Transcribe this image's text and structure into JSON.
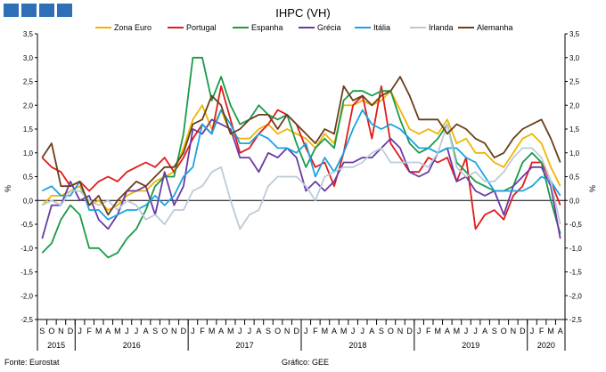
{
  "logo": {
    "color": "#2e6fb5",
    "squares": 4
  },
  "footer": {
    "source": "Fonte: Eurostat",
    "credit": "Gráfico: GEE"
  },
  "chart_data": {
    "type": "line",
    "title": "IHPC (VH)",
    "ylabel_left": "%",
    "ylabel_right": "%",
    "ylim": [
      -2.5,
      3.5
    ],
    "yticks": [
      -2.5,
      -2.0,
      -1.5,
      -1.0,
      -0.5,
      0.0,
      0.5,
      1.0,
      1.5,
      2.0,
      2.5,
      3.0,
      3.5
    ],
    "ytick_labels": [
      "-2,5",
      "-2,0",
      "-1,5",
      "-1,0",
      "-0,5",
      "0,0",
      "0,5",
      "1,0",
      "1,5",
      "2,0",
      "2,5",
      "3,0",
      "3,5"
    ],
    "gridlines": false,
    "legend_position": "top",
    "month_labels": [
      "S",
      "O",
      "N",
      "D",
      "J",
      "F",
      "M",
      "A",
      "M",
      "J",
      "J",
      "A",
      "S",
      "O",
      "N",
      "D",
      "J",
      "F",
      "M",
      "A",
      "M",
      "J",
      "J",
      "A",
      "S",
      "O",
      "N",
      "D",
      "J",
      "F",
      "M",
      "A",
      "M",
      "J",
      "J",
      "A",
      "S",
      "O",
      "N",
      "D",
      "J",
      "F",
      "M",
      "A",
      "M",
      "J",
      "J",
      "A",
      "S",
      "O",
      "N",
      "D",
      "J",
      "F",
      "M",
      "A"
    ],
    "year_groups": [
      {
        "label": "2015",
        "count": 4
      },
      {
        "label": "2016",
        "count": 12
      },
      {
        "label": "2017",
        "count": 12
      },
      {
        "label": "2018",
        "count": 12
      },
      {
        "label": "2019",
        "count": 12
      },
      {
        "label": "2020",
        "count": 4
      }
    ],
    "series": [
      {
        "name": "Zona Euro",
        "color": "#f0b400",
        "values": [
          -0.1,
          0.1,
          0.1,
          0.2,
          0.3,
          -0.1,
          0.0,
          -0.2,
          -0.1,
          0.1,
          0.2,
          0.2,
          0.4,
          0.5,
          0.6,
          1.1,
          1.7,
          2.0,
          1.5,
          1.9,
          1.4,
          1.3,
          1.3,
          1.5,
          1.6,
          1.4,
          1.5,
          1.4,
          1.3,
          1.1,
          1.4,
          1.2,
          2.0,
          2.0,
          2.1,
          2.0,
          2.1,
          2.3,
          1.9,
          1.5,
          1.4,
          1.5,
          1.4,
          1.7,
          1.2,
          1.3,
          1.0,
          1.0,
          0.8,
          0.7,
          1.0,
          1.3,
          1.4,
          1.2,
          0.7,
          0.3
        ]
      },
      {
        "name": "Portugal",
        "color": "#e01b1b",
        "values": [
          0.9,
          0.7,
          0.6,
          0.3,
          0.4,
          0.2,
          0.4,
          0.5,
          0.4,
          0.6,
          0.7,
          0.8,
          0.7,
          0.9,
          0.6,
          0.9,
          1.3,
          1.6,
          1.4,
          2.4,
          1.7,
          1.0,
          1.1,
          1.4,
          1.6,
          1.9,
          1.8,
          1.6,
          1.1,
          0.7,
          0.8,
          0.3,
          1.0,
          2.0,
          2.2,
          1.3,
          2.4,
          1.2,
          0.9,
          0.6,
          0.6,
          0.9,
          0.8,
          0.9,
          0.4,
          0.9,
          -0.6,
          -0.3,
          -0.2,
          -0.4,
          0.1,
          0.3,
          0.8,
          0.8,
          0.4,
          -0.1
        ]
      },
      {
        "name": "Espanha",
        "color": "#1a9a48",
        "values": [
          -1.1,
          -0.9,
          -0.4,
          -0.1,
          -0.3,
          -1.0,
          -1.0,
          -1.2,
          -1.1,
          -0.8,
          -0.6,
          -0.2,
          0.3,
          0.5,
          0.5,
          1.4,
          3.0,
          3.0,
          2.1,
          2.6,
          2.0,
          1.6,
          1.7,
          2.0,
          1.8,
          1.7,
          1.8,
          1.2,
          0.7,
          1.1,
          1.3,
          1.1,
          2.1,
          2.3,
          2.3,
          2.2,
          2.3,
          2.3,
          1.7,
          1.2,
          1.0,
          1.1,
          1.3,
          1.6,
          0.8,
          0.6,
          0.4,
          0.3,
          0.2,
          0.2,
          0.3,
          0.8,
          1.0,
          0.8,
          0.0,
          -0.7
        ]
      },
      {
        "name": "Grécia",
        "color": "#6a3aa6",
        "values": [
          -0.8,
          -0.1,
          -0.1,
          0.4,
          0.0,
          0.1,
          -0.4,
          -0.6,
          -0.3,
          0.2,
          0.2,
          0.3,
          -0.3,
          0.6,
          -0.1,
          0.3,
          1.5,
          1.4,
          1.7,
          1.6,
          1.5,
          0.9,
          0.9,
          0.6,
          1.0,
          0.9,
          1.1,
          0.9,
          0.2,
          0.4,
          0.2,
          0.4,
          0.8,
          0.8,
          0.9,
          0.9,
          1.1,
          1.3,
          1.1,
          0.6,
          0.5,
          0.6,
          1.0,
          1.1,
          0.4,
          0.5,
          0.2,
          0.1,
          0.2,
          -0.3,
          0.3,
          0.5,
          0.7,
          0.7,
          0.3,
          -0.8
        ]
      },
      {
        "name": "Itália",
        "color": "#1aa3e0",
        "values": [
          0.2,
          0.3,
          0.1,
          0.1,
          0.4,
          -0.2,
          -0.2,
          -0.4,
          -0.3,
          -0.2,
          -0.2,
          -0.1,
          0.1,
          -0.1,
          0.1,
          0.5,
          0.7,
          1.6,
          1.4,
          1.9,
          1.6,
          1.2,
          1.2,
          1.4,
          1.3,
          1.1,
          1.1,
          1.0,
          1.2,
          0.5,
          0.9,
          0.6,
          1.0,
          1.5,
          1.9,
          1.6,
          1.5,
          1.6,
          1.5,
          1.3,
          1.1,
          1.1,
          1.0,
          1.1,
          1.1,
          0.9,
          0.8,
          0.5,
          0.2,
          0.2,
          0.2,
          0.2,
          0.3,
          0.5,
          0.4,
          0.1
        ]
      },
      {
        "name": "Irlanda",
        "color": "#bccad8",
        "values": [
          -0.1,
          0.0,
          -0.1,
          0.2,
          0.2,
          0.0,
          -0.1,
          0.0,
          -0.2,
          0.0,
          -0.1,
          -0.4,
          -0.3,
          -0.5,
          -0.2,
          -0.2,
          0.2,
          0.3,
          0.6,
          0.7,
          0.0,
          -0.6,
          -0.3,
          -0.2,
          0.3,
          0.5,
          0.5,
          0.5,
          0.3,
          0.0,
          0.5,
          0.6,
          0.7,
          0.7,
          0.8,
          1.0,
          1.1,
          0.8,
          0.8,
          0.8,
          0.8,
          0.7,
          1.0,
          1.6,
          0.7,
          0.5,
          0.6,
          0.4,
          0.4,
          0.6,
          0.9,
          1.1,
          1.1,
          0.9,
          0.4,
          -0.5
        ]
      },
      {
        "name": "Alemanha",
        "color": "#6b3e1c",
        "values": [
          0.9,
          1.2,
          0.3,
          0.3,
          0.4,
          -0.1,
          0.1,
          -0.3,
          0.0,
          0.2,
          0.4,
          0.3,
          0.5,
          0.7,
          0.7,
          1.0,
          1.6,
          1.7,
          2.2,
          2.0,
          1.4,
          1.5,
          1.7,
          1.8,
          1.8,
          1.5,
          1.8,
          1.6,
          1.4,
          1.2,
          1.5,
          1.4,
          2.4,
          2.1,
          2.2,
          2.0,
          2.2,
          2.3,
          2.6,
          2.2,
          1.7,
          1.7,
          1.7,
          1.4,
          1.6,
          1.5,
          1.3,
          1.2,
          0.9,
          1.0,
          1.3,
          1.5,
          1.6,
          1.7,
          1.3,
          0.8
        ]
      }
    ]
  }
}
